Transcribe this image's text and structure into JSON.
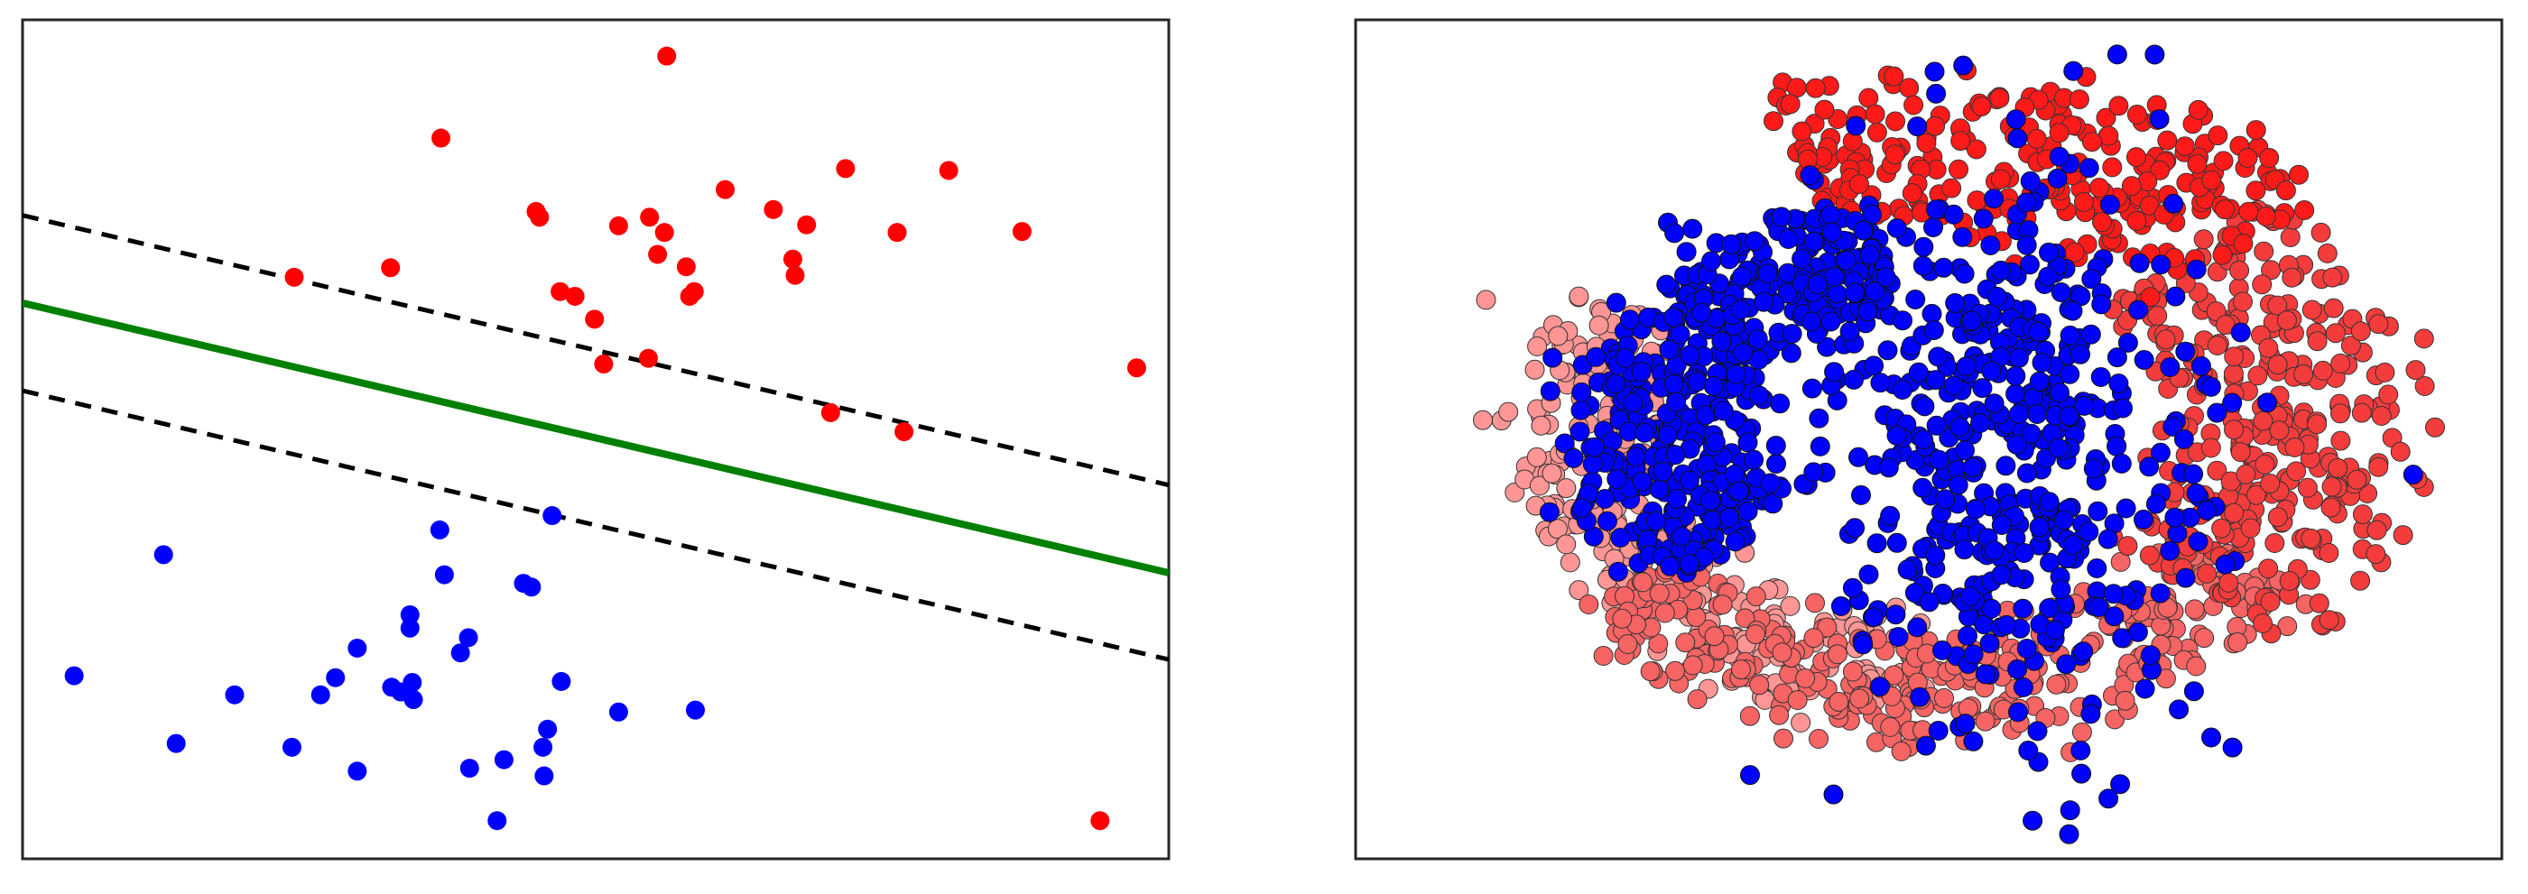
{
  "colors": {
    "class_a": "#ff0000",
    "class_b": "#0000ff",
    "boundary": "#008000",
    "margin": "#000000",
    "outer_ring": "#ff9595",
    "mid_ring": "#f76464",
    "inner_ring_red": "#ff1a1a",
    "frame": "#262626"
  },
  "chart_data": [
    {
      "type": "scatter",
      "title": "",
      "xlabel": "",
      "ylabel": "",
      "xlim": [
        0,
        10
      ],
      "ylim": [
        0,
        8.8
      ],
      "grid": false,
      "ticks": false,
      "legend": "none",
      "series": [
        {
          "color": "#ff0000",
          "points": [
            [
              2.37,
              6.1
            ],
            [
              3.21,
              6.2
            ],
            [
              3.65,
              7.56
            ],
            [
              4.51,
              6.73
            ],
            [
              4.48,
              6.79
            ],
            [
              5.62,
              8.42
            ],
            [
              6.13,
              7.02
            ],
            [
              6.55,
              6.81
            ],
            [
              6.72,
              6.29
            ],
            [
              5.2,
              6.64
            ],
            [
              5.47,
              6.73
            ],
            [
              5.54,
              6.34
            ],
            [
              5.6,
              6.57
            ],
            [
              5.79,
              6.21
            ],
            [
              5.86,
              5.95
            ],
            [
              5.82,
              5.9
            ],
            [
              4.82,
              5.9
            ],
            [
              4.69,
              5.95
            ],
            [
              4.99,
              5.66
            ],
            [
              5.07,
              5.19
            ],
            [
              5.46,
              5.25
            ],
            [
              6.84,
              6.65
            ],
            [
              6.74,
              6.12
            ],
            [
              7.18,
              7.24
            ],
            [
              8.08,
              7.22
            ],
            [
              7.63,
              6.57
            ],
            [
              8.72,
              6.58
            ],
            [
              9.72,
              5.15
            ],
            [
              7.05,
              4.68
            ],
            [
              7.69,
              4.48
            ],
            [
              9.4,
              0.4
            ]
          ]
        },
        {
          "color": "#0000ff",
          "points": [
            [
              1.23,
              3.19
            ],
            [
              0.45,
              1.92
            ],
            [
              1.34,
              1.21
            ],
            [
              1.85,
              1.72
            ],
            [
              2.35,
              1.17
            ],
            [
              2.92,
              0.92
            ],
            [
              2.6,
              1.72
            ],
            [
              2.73,
              1.9
            ],
            [
              2.92,
              2.21
            ],
            [
              3.38,
              2.42
            ],
            [
              3.68,
              2.98
            ],
            [
              3.38,
              2.56
            ],
            [
              3.22,
              1.8
            ],
            [
              3.3,
              1.75
            ],
            [
              3.4,
              1.85
            ],
            [
              3.41,
              1.67
            ],
            [
              3.82,
              2.16
            ],
            [
              3.89,
              2.32
            ],
            [
              3.64,
              3.45
            ],
            [
              4.37,
              2.89
            ],
            [
              4.44,
              2.85
            ],
            [
              4.62,
              3.6
            ],
            [
              4.7,
              1.86
            ],
            [
              4.58,
              1.36
            ],
            [
              4.54,
              1.17
            ],
            [
              4.2,
              1.04
            ],
            [
              3.9,
              0.95
            ],
            [
              4.55,
              0.87
            ],
            [
              4.14,
              0.4
            ],
            [
              5.2,
              1.54
            ],
            [
              5.87,
              1.56
            ]
          ]
        },
        {
          "name": "",
          "kind": "line",
          "color": "#008000",
          "points": [
            [
              0,
              5.83
            ],
            [
              10,
              3.0
            ]
          ]
        },
        {
          "name": "",
          "kind": "dashed-line",
          "color": "#000000",
          "points": [
            [
              0,
              6.75
            ],
            [
              10,
              3.92
            ]
          ]
        },
        {
          "name": "",
          "kind": "dashed-line",
          "color": "#000000",
          "points": [
            [
              0,
              4.91
            ],
            [
              10,
              2.09
            ]
          ]
        }
      ]
    },
    {
      "type": "scatter",
      "title": "",
      "xlabel": "",
      "ylabel": "",
      "xlim": [
        -1.6,
        1.6
      ],
      "ylim": [
        -1.15,
        1.15
      ],
      "grid": false,
      "ticks": false,
      "legend": "none",
      "series": [
        {
          "color": "#ff9595",
          "stroke": "#333333",
          "generator": "ring",
          "count": 260,
          "r": [
            0.55,
            0.78
          ],
          "theta": [
            150,
            270
          ],
          "seed": 11
        },
        {
          "color": "#f76464",
          "stroke": "#333333",
          "generator": "ring",
          "count": 330,
          "r": [
            0.58,
            0.83
          ],
          "theta": [
            215,
            330
          ],
          "seed": 23
        },
        {
          "color": "#f53c3c",
          "stroke": "#333333",
          "generator": "ring",
          "count": 330,
          "r": [
            0.5,
            0.9
          ],
          "theta": [
            -40,
            45
          ],
          "seed": 37
        },
        {
          "color": "#ff1a1a",
          "stroke": "#333333",
          "generator": "ring",
          "count": 260,
          "r": [
            0.6,
            1.0
          ],
          "theta": [
            40,
            110
          ],
          "seed": 41
        },
        {
          "color": "#0000ff",
          "stroke": "#111111",
          "generator": "ring",
          "count": 460,
          "r": [
            0.38,
            0.66
          ],
          "theta": [
            100,
            220
          ],
          "seed": 53
        },
        {
          "color": "#0000ff",
          "stroke": "#111111",
          "generator": "blob",
          "count": 520,
          "cx": 0.2,
          "cy": -0.02,
          "sx": 0.28,
          "sy": 0.38,
          "seed": 67
        }
      ]
    }
  ]
}
